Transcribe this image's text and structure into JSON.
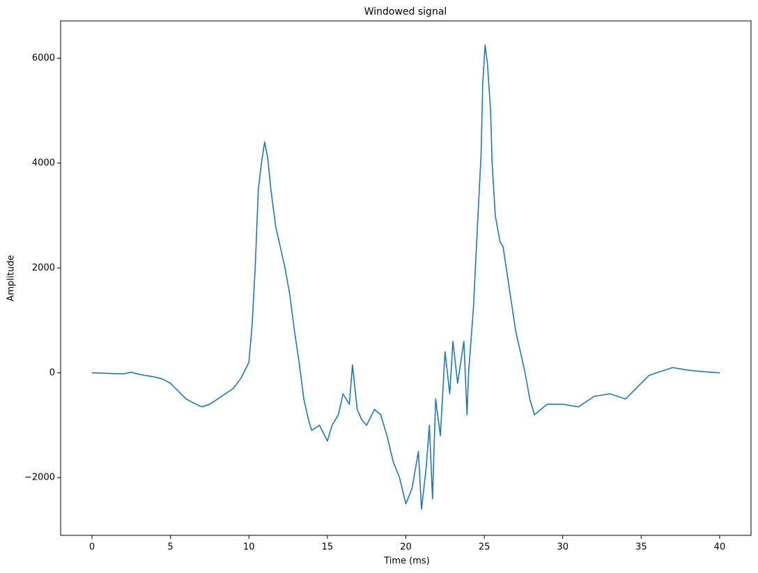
{
  "chart_data": {
    "type": "line",
    "title": "Windowed signal",
    "x_label": "Time (ms)",
    "y_label": "Amplitude",
    "color": "#1f77b4",
    "x": [
      0,
      1,
      2,
      2.5,
      3,
      4,
      4.5,
      5,
      5.5,
      6,
      6.5,
      7,
      7.5,
      8,
      8.5,
      9,
      9.5,
      10,
      10.2,
      10.4,
      10.6,
      10.8,
      11,
      11.2,
      11.4,
      11.7,
      12,
      12.3,
      12.6,
      12.9,
      13.2,
      13.5,
      13.8,
      14,
      14.5,
      15,
      15.3,
      15.7,
      16,
      16.4,
      16.6,
      16.9,
      17.2,
      17.5,
      18,
      18.4,
      18.8,
      19.2,
      19.6,
      20,
      20.4,
      20.8,
      21,
      21.3,
      21.5,
      21.7,
      21.9,
      22.2,
      22.5,
      22.8,
      23,
      23.3,
      23.7,
      23.9,
      24,
      24.3,
      24.6,
      24.8,
      24.9,
      25.05,
      25.2,
      25.4,
      25.5,
      25.7,
      26,
      26.2,
      26.5,
      26.8,
      27,
      27.3,
      27.6,
      27.9,
      28.2,
      28.6,
      29,
      30,
      31,
      32,
      33,
      34,
      34.5,
      35,
      35.5,
      36,
      36.5,
      37,
      38,
      39,
      40
    ],
    "values": [
      0,
      -10,
      -20,
      10,
      -30,
      -80,
      -120,
      -200,
      -350,
      -500,
      -580,
      -650,
      -600,
      -500,
      -400,
      -300,
      -100,
      200,
      900,
      2000,
      3500,
      4000,
      4400,
      4100,
      3500,
      2800,
      2400,
      2000,
      1500,
      800,
      200,
      -500,
      -900,
      -1100,
      -1000,
      -1300,
      -1000,
      -800,
      -400,
      -600,
      150,
      -700,
      -900,
      -1000,
      -700,
      -800,
      -1200,
      -1700,
      -2000,
      -2500,
      -2200,
      -1500,
      -2600,
      -1800,
      -1000,
      -2400,
      -500,
      -1200,
      400,
      -400,
      600,
      -200,
      600,
      -800,
      0,
      1200,
      3000,
      4200,
      5500,
      6250,
      5900,
      5000,
      4000,
      3000,
      2500,
      2400,
      1800,
      1200,
      800,
      400,
      0,
      -500,
      -800,
      -700,
      -600,
      -600,
      -650,
      -450,
      -400,
      -500,
      -350,
      -200,
      -50,
      0,
      50,
      100,
      50,
      20,
      0
    ],
    "xlim": [
      -2,
      42
    ],
    "ylim": [
      -3100,
      6710
    ],
    "xticks": [
      0,
      5,
      10,
      15,
      20,
      25,
      30,
      35,
      40
    ],
    "yticks": [
      {
        "value": -2000,
        "label": "−2000"
      },
      0,
      2000,
      4000,
      6000
    ]
  }
}
